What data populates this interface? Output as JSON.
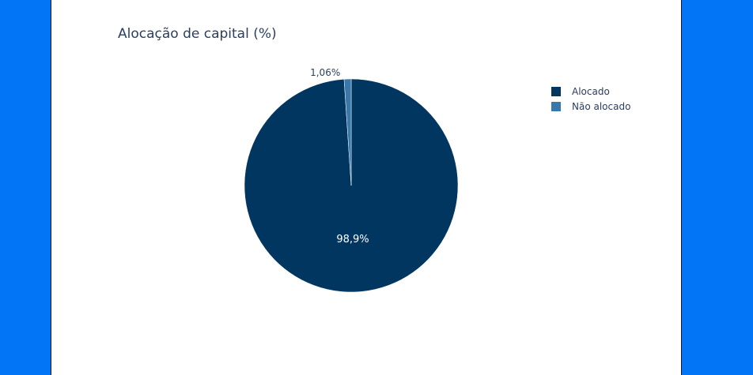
{
  "chart_data": {
    "type": "pie",
    "title": "Alocação de capital (%)",
    "categories": [
      "Alocado",
      "Não alocado"
    ],
    "values": [
      98.94,
      1.06
    ],
    "labels": [
      "98,9%",
      "1,06%"
    ],
    "colors": [
      "#00365f",
      "#3a78aa"
    ],
    "legend": {
      "position": "top-right",
      "items": [
        {
          "label": "Alocado",
          "color": "#00365f"
        },
        {
          "label": "Não alocado",
          "color": "#3a78aa"
        }
      ]
    }
  },
  "colors": {
    "background": "#0275f7",
    "panel": "#ffffff",
    "text": "#2a3f5f"
  }
}
